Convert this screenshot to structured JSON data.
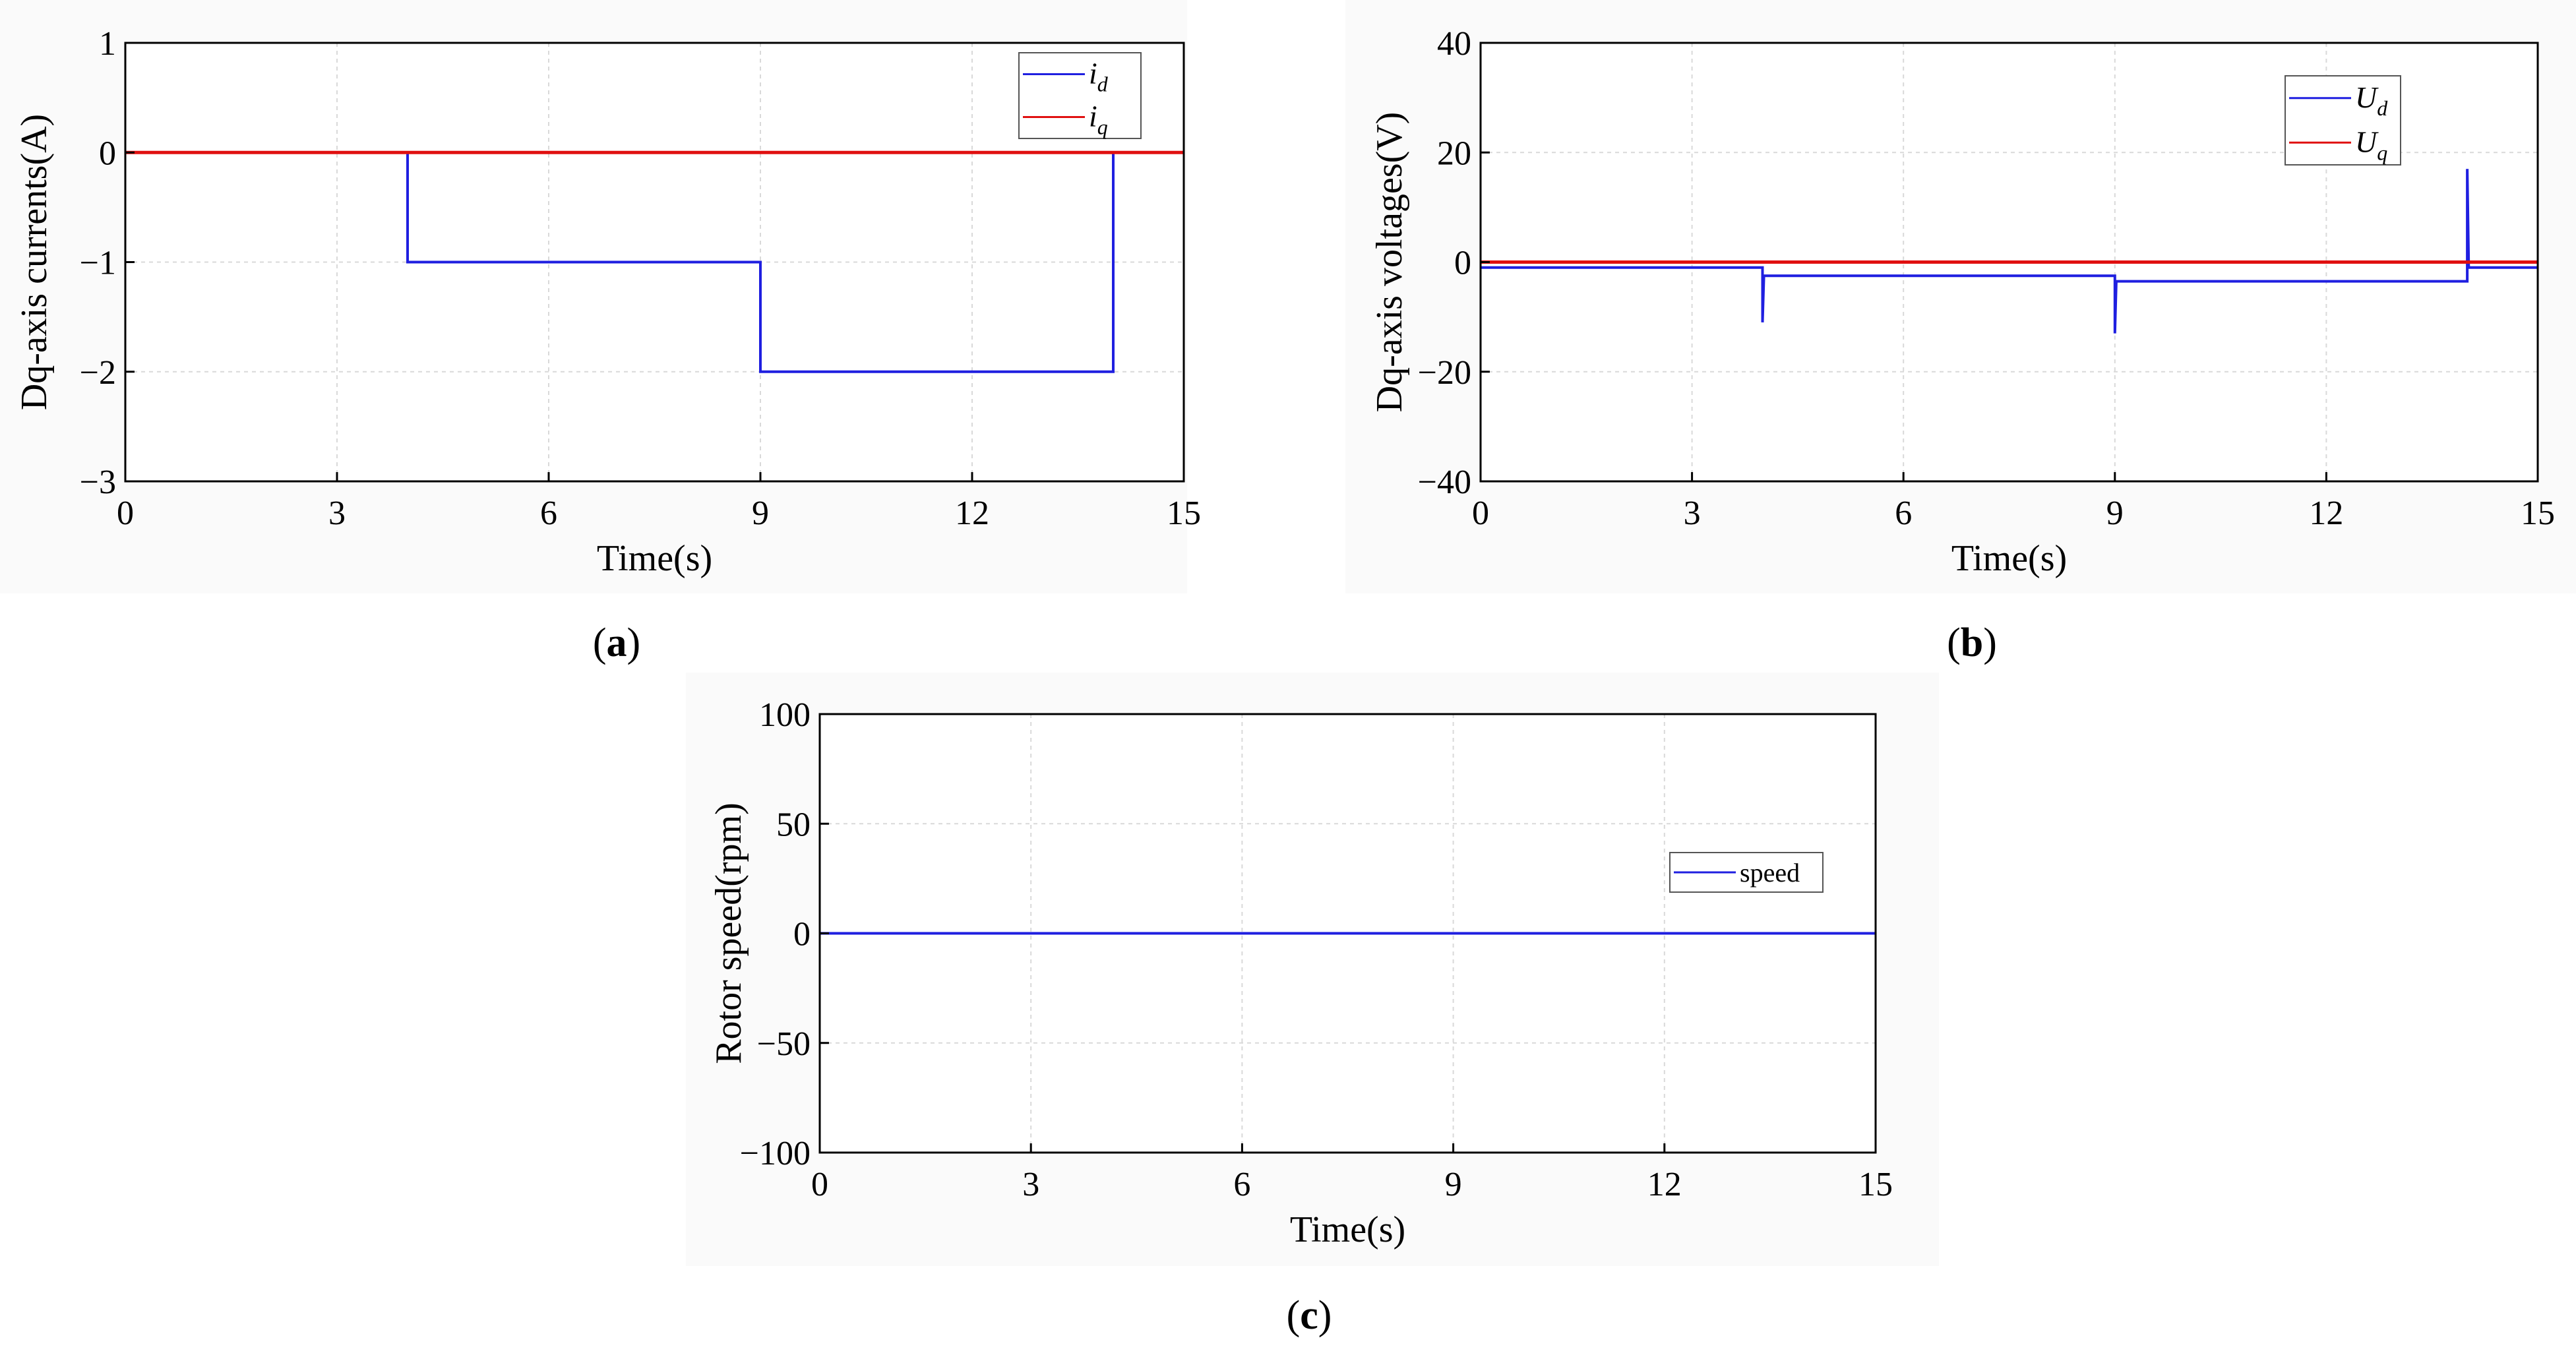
{
  "colors": {
    "blue": "#1f1fe0",
    "red": "#e01010",
    "grid": "#d9d9d9",
    "axis": "#000000",
    "panel_bg": "#fafafa"
  },
  "chart_data": [
    {
      "id": "a",
      "type": "line",
      "caption": "(a)",
      "xlabel": "Time(s)",
      "ylabel": "Dq-axis currents(A)",
      "xlim": [
        0,
        15
      ],
      "ylim": [
        -3,
        1
      ],
      "xticks": [
        0,
        3,
        6,
        9,
        12,
        15
      ],
      "yticks": [
        1,
        0,
        -1,
        -2,
        -3
      ],
      "xtick_labels": [
        "0",
        "3",
        "6",
        "9",
        "12",
        "15"
      ],
      "ytick_labels": [
        "1",
        "0",
        "−1",
        "−2",
        "−3"
      ],
      "grid": true,
      "legend_position": "top-right",
      "series": [
        {
          "name": "i_d",
          "legend_main": "i",
          "legend_sub": "d",
          "color": "blue",
          "points": [
            [
              0,
              0
            ],
            [
              4,
              0
            ],
            [
              4,
              -1
            ],
            [
              9,
              -1
            ],
            [
              9,
              -2
            ],
            [
              14,
              -2
            ],
            [
              14,
              0
            ],
            [
              15,
              0
            ]
          ]
        },
        {
          "name": "i_q",
          "legend_main": "i",
          "legend_sub": "q",
          "color": "red",
          "points": [
            [
              0,
              0
            ],
            [
              15,
              0
            ]
          ]
        }
      ]
    },
    {
      "id": "b",
      "type": "line",
      "caption": "(b)",
      "xlabel": "Time(s)",
      "ylabel": "Dq-axis voltages(V)",
      "xlim": [
        0,
        15
      ],
      "ylim": [
        -40,
        40
      ],
      "xticks": [
        0,
        3,
        6,
        9,
        12,
        15
      ],
      "yticks": [
        40,
        20,
        0,
        -20,
        -40
      ],
      "xtick_labels": [
        "0",
        "3",
        "6",
        "9",
        "12",
        "15"
      ],
      "ytick_labels": [
        "40",
        "20",
        "0",
        "−20",
        "−40"
      ],
      "grid": true,
      "legend_position": "top-right",
      "series": [
        {
          "name": "U_d",
          "legend_main": "U",
          "legend_sub": "d",
          "color": "blue",
          "points": [
            [
              0,
              -1
            ],
            [
              4,
              -1
            ],
            [
              4,
              -11
            ],
            [
              4.02,
              -2.5
            ],
            [
              9,
              -2.5
            ],
            [
              9,
              -13
            ],
            [
              9.02,
              -3.5
            ],
            [
              14,
              -3.5
            ],
            [
              14,
              17
            ],
            [
              14.02,
              -1
            ],
            [
              15,
              -1
            ]
          ]
        },
        {
          "name": "U_q",
          "legend_main": "U",
          "legend_sub": "q",
          "color": "red",
          "points": [
            [
              0,
              0
            ],
            [
              15,
              0
            ]
          ]
        }
      ]
    },
    {
      "id": "c",
      "type": "line",
      "caption": "(c)",
      "xlabel": "Time(s)",
      "ylabel": "Rotor speed(rpm)",
      "xlim": [
        0,
        15
      ],
      "ylim": [
        -100,
        100
      ],
      "xticks": [
        0,
        3,
        6,
        9,
        12,
        15
      ],
      "yticks": [
        100,
        50,
        0,
        -50,
        -100
      ],
      "xtick_labels": [
        "0",
        "3",
        "6",
        "9",
        "12",
        "15"
      ],
      "ytick_labels": [
        "100",
        "50",
        "0",
        "−50",
        "−100"
      ],
      "grid": true,
      "legend_position": "center-right",
      "series": [
        {
          "name": "speed",
          "legend_main": "speed",
          "legend_sub": "",
          "color": "blue",
          "points": [
            [
              0,
              0
            ],
            [
              15,
              0
            ]
          ]
        }
      ]
    }
  ]
}
